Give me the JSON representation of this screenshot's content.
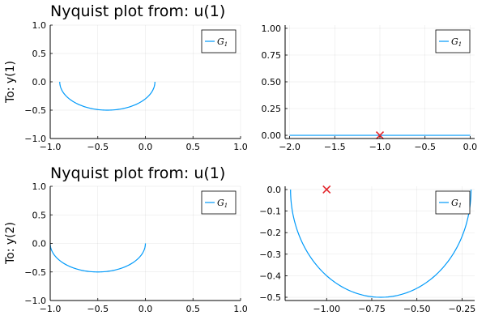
{
  "chart_data": [
    {
      "type": "line",
      "title": "Nyquist plot from: u(1)",
      "ylabel": "To: y(1)",
      "xlim": [
        -1.0,
        1.0
      ],
      "ylim": [
        -1.0,
        1.0
      ],
      "xticks": [
        -1.0,
        -0.5,
        0.0,
        0.5,
        1.0
      ],
      "xtick_labels": [
        "−1.0",
        "−0.5",
        "0.0",
        "0.5",
        "1.0"
      ],
      "yticks": [
        -1.0,
        -0.5,
        0.0,
        0.5,
        1.0
      ],
      "ytick_labels": [
        "−1.0",
        "−0.5",
        "0.0",
        "0.5",
        "1.0"
      ],
      "grid": true,
      "legend": {
        "position": "top-right",
        "entries": [
          {
            "label": "G",
            "subscript": "1"
          }
        ]
      },
      "series": [
        {
          "name": "G1",
          "color": "#009AFA",
          "curve": {
            "kind": "semicircle-lower",
            "center": [
              -0.4,
              0.0
            ],
            "radius": 0.5
          }
        }
      ],
      "markers": []
    },
    {
      "type": "line",
      "title": "",
      "ylabel": "",
      "xlim": [
        -2.05,
        0.05
      ],
      "ylim": [
        -0.03,
        1.03
      ],
      "xticks": [
        -2.0,
        -1.5,
        -1.0,
        -0.5,
        0.0
      ],
      "xtick_labels": [
        "−2.0",
        "−1.5",
        "−1.0",
        "−0.5",
        "0.0"
      ],
      "yticks": [
        0.0,
        0.25,
        0.5,
        0.75,
        1.0
      ],
      "ytick_labels": [
        "0.00",
        "0.25",
        "0.50",
        "0.75",
        "1.00"
      ],
      "grid": true,
      "legend": {
        "position": "top-right",
        "entries": [
          {
            "label": "G",
            "subscript": "1"
          }
        ]
      },
      "series": [
        {
          "name": "G1",
          "color": "#009AFA",
          "x": [
            -2.0,
            0.0
          ],
          "y": [
            0.0,
            0.0
          ]
        }
      ],
      "markers": [
        {
          "x": -1.0,
          "y": 0.0,
          "symbol": "x",
          "color": "#E3242B"
        }
      ]
    },
    {
      "type": "line",
      "title": "Nyquist plot from: u(1)",
      "ylabel": "To: y(2)",
      "xlim": [
        -1.0,
        1.0
      ],
      "ylim": [
        -1.0,
        1.0
      ],
      "xticks": [
        -1.0,
        -0.5,
        0.0,
        0.5,
        1.0
      ],
      "xtick_labels": [
        "−1.0",
        "−0.5",
        "0.0",
        "0.5",
        "1.0"
      ],
      "yticks": [
        -1.0,
        -0.5,
        0.0,
        0.5,
        1.0
      ],
      "ytick_labels": [
        "−1.0",
        "−0.5",
        "0.0",
        "0.5",
        "1.0"
      ],
      "grid": true,
      "legend": {
        "position": "top-right",
        "entries": [
          {
            "label": "G",
            "subscript": "1"
          }
        ]
      },
      "series": [
        {
          "name": "G1",
          "color": "#009AFA",
          "curve": {
            "kind": "semicircle-lower",
            "center": [
              -0.5,
              0.0
            ],
            "radius": 0.5
          }
        }
      ],
      "markers": []
    },
    {
      "type": "line",
      "title": "",
      "ylabel": "",
      "xlim": [
        -1.23,
        -0.18
      ],
      "ylim": [
        -0.515,
        0.015
      ],
      "xticks": [
        -1.0,
        -0.75,
        -0.5,
        -0.25
      ],
      "xtick_labels": [
        "−1.00",
        "−0.75",
        "−0.50",
        "−0.25"
      ],
      "yticks": [
        -0.5,
        -0.4,
        -0.3,
        -0.2,
        -0.1,
        0.0
      ],
      "ytick_labels": [
        "−0.5",
        "−0.4",
        "−0.3",
        "−0.2",
        "−0.1",
        "0.0"
      ],
      "grid": true,
      "legend": {
        "position": "top-right",
        "entries": [
          {
            "label": "G",
            "subscript": "1"
          }
        ]
      },
      "series": [
        {
          "name": "G1",
          "color": "#009AFA",
          "curve": {
            "kind": "semicircle-lower",
            "center": [
              -0.7,
              0.0
            ],
            "radius": 0.5
          }
        }
      ],
      "markers": [
        {
          "x": -1.0,
          "y": 0.0,
          "symbol": "x",
          "color": "#E3242B"
        }
      ]
    }
  ]
}
